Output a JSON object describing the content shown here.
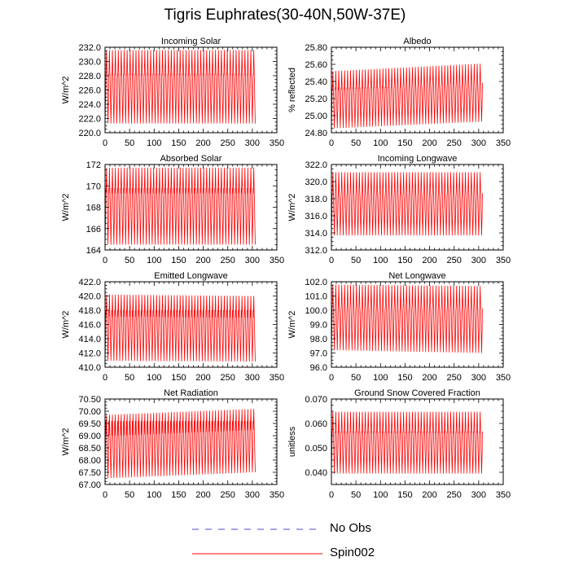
{
  "page_title": "Tigris Euphrates(30-40N,50W-37E)",
  "legend": [
    {
      "label": "No Obs",
      "color": "#4848c8",
      "dash": true
    },
    {
      "label": "Spin002",
      "color": "#ff0000",
      "dash": false
    }
  ],
  "chart_data": [
    {
      "type": "line",
      "title": "Incoming Solar",
      "ylabel": "W/m^2",
      "xlim": [
        0,
        350
      ],
      "ylim": [
        220,
        232
      ],
      "xticks": [
        "0",
        "50",
        "100",
        "150",
        "200",
        "250",
        "300",
        "350"
      ],
      "yticks": [
        "220.0",
        "222.0",
        "224.0",
        "226.0",
        "228.0",
        "230.0",
        "232.0"
      ],
      "series": [
        {
          "name": "Spin002",
          "color": "#ff0000",
          "x_end": 306,
          "period": 6,
          "max": [
            231.6,
            231.6
          ],
          "min": [
            221.3,
            221.3
          ],
          "inner": [
            228.2,
            225.0
          ]
        }
      ]
    },
    {
      "type": "line",
      "title": "Albedo",
      "ylabel": "% reflected",
      "xlim": [
        0,
        350
      ],
      "ylim": [
        24.8,
        25.8
      ],
      "xticks": [
        "0",
        "50",
        "100",
        "150",
        "200",
        "250",
        "300",
        "350"
      ],
      "yticks": [
        "24.80",
        "25.00",
        "25.20",
        "25.40",
        "25.60",
        "25.80"
      ],
      "series": [
        {
          "name": "Spin002",
          "color": "#ff0000",
          "x_end": 308,
          "period": 6,
          "max": [
            25.52,
            25.61
          ],
          "min": [
            24.85,
            24.93
          ],
          "inner": [
            25.33,
            25.05
          ]
        }
      ]
    },
    {
      "type": "line",
      "title": "Absorbed Solar",
      "ylabel": "W/m^2",
      "xlim": [
        0,
        350
      ],
      "ylim": [
        164,
        172
      ],
      "xticks": [
        "0",
        "50",
        "100",
        "150",
        "200",
        "250",
        "300",
        "350"
      ],
      "yticks": [
        "164",
        "166",
        "168",
        "170",
        "172"
      ],
      "series": [
        {
          "name": "Spin002",
          "color": "#ff0000",
          "x_end": 306,
          "period": 6,
          "max": [
            171.7,
            171.7
          ],
          "min": [
            164.5,
            164.5
          ],
          "inner": [
            169.8,
            167.6
          ]
        }
      ]
    },
    {
      "type": "line",
      "title": "Incoming Longwave",
      "ylabel": "W/m^2",
      "xlim": [
        0,
        350
      ],
      "ylim": [
        312,
        322
      ],
      "xticks": [
        "0",
        "50",
        "100",
        "150",
        "200",
        "250",
        "300",
        "350"
      ],
      "yticks": [
        "312.0",
        "314.0",
        "316.0",
        "318.0",
        "320.0",
        "322.0"
      ],
      "series": [
        {
          "name": "Spin002",
          "color": "#ff0000",
          "x_end": 308,
          "period": 6,
          "max": [
            321.1,
            321.1
          ],
          "min": [
            313.7,
            313.7
          ],
          "inner": [
            318.3,
            315.5
          ]
        }
      ]
    },
    {
      "type": "line",
      "title": "Emitted Longwave",
      "ylabel": "W/m^2",
      "xlim": [
        0,
        350
      ],
      "ylim": [
        410,
        422
      ],
      "xticks": [
        "0",
        "50",
        "100",
        "150",
        "200",
        "250",
        "300",
        "350"
      ],
      "yticks": [
        "410.0",
        "412.0",
        "414.0",
        "416.0",
        "418.0",
        "420.0",
        "422.0"
      ],
      "series": [
        {
          "name": "Spin002",
          "color": "#ff0000",
          "x_end": 306,
          "period": 6,
          "max": [
            420.2,
            420.0
          ],
          "min": [
            410.9,
            410.8
          ],
          "inner": [
            418.0,
            415.0
          ]
        }
      ]
    },
    {
      "type": "line",
      "title": "Net Longwave",
      "ylabel": "W/m^2",
      "xlim": [
        0,
        350
      ],
      "ylim": [
        96,
        102
      ],
      "xticks": [
        "0",
        "50",
        "100",
        "150",
        "200",
        "250",
        "300",
        "350"
      ],
      "yticks": [
        "96.0",
        "97.0",
        "98.0",
        "99.0",
        "100.0",
        "101.0",
        "102.0"
      ],
      "series": [
        {
          "name": "Spin002",
          "color": "#ff0000",
          "x_end": 308,
          "period": 6,
          "max": [
            101.8,
            101.7
          ],
          "min": [
            97.2,
            97.0
          ],
          "inner": [
            100.0,
            99.2
          ]
        }
      ]
    },
    {
      "type": "line",
      "title": "Net Radiation",
      "ylabel": "W/m^2",
      "xlim": [
        0,
        350
      ],
      "ylim": [
        67,
        70.5
      ],
      "xticks": [
        "0",
        "50",
        "100",
        "150",
        "200",
        "250",
        "300",
        "350"
      ],
      "yticks": [
        "67.00",
        "67.50",
        "68.00",
        "68.50",
        "69.00",
        "69.50",
        "70.00",
        "70.50"
      ],
      "series": [
        {
          "name": "Spin002",
          "color": "#ff0000",
          "x_end": 306,
          "period": 6,
          "max": [
            69.85,
            70.1
          ],
          "min": [
            67.25,
            67.5
          ],
          "inner": [
            69.6,
            68.9
          ]
        }
      ]
    },
    {
      "type": "line",
      "title": "Ground Snow Covered Fraction",
      "ylabel": "unitless",
      "xlim": [
        0,
        350
      ],
      "ylim": [
        0.035,
        0.07
      ],
      "xticks": [
        "0",
        "50",
        "100",
        "150",
        "200",
        "250",
        "300",
        "350"
      ],
      "yticks": [
        "0.040",
        "0.050",
        "0.060",
        "0.070"
      ],
      "series": [
        {
          "name": "Spin002",
          "color": "#ff0000",
          "x_end": 308,
          "period": 6,
          "max": [
            0.0648,
            0.0648
          ],
          "min": [
            0.0395,
            0.0395
          ],
          "inner": [
            0.0565,
            0.048
          ]
        }
      ]
    }
  ]
}
